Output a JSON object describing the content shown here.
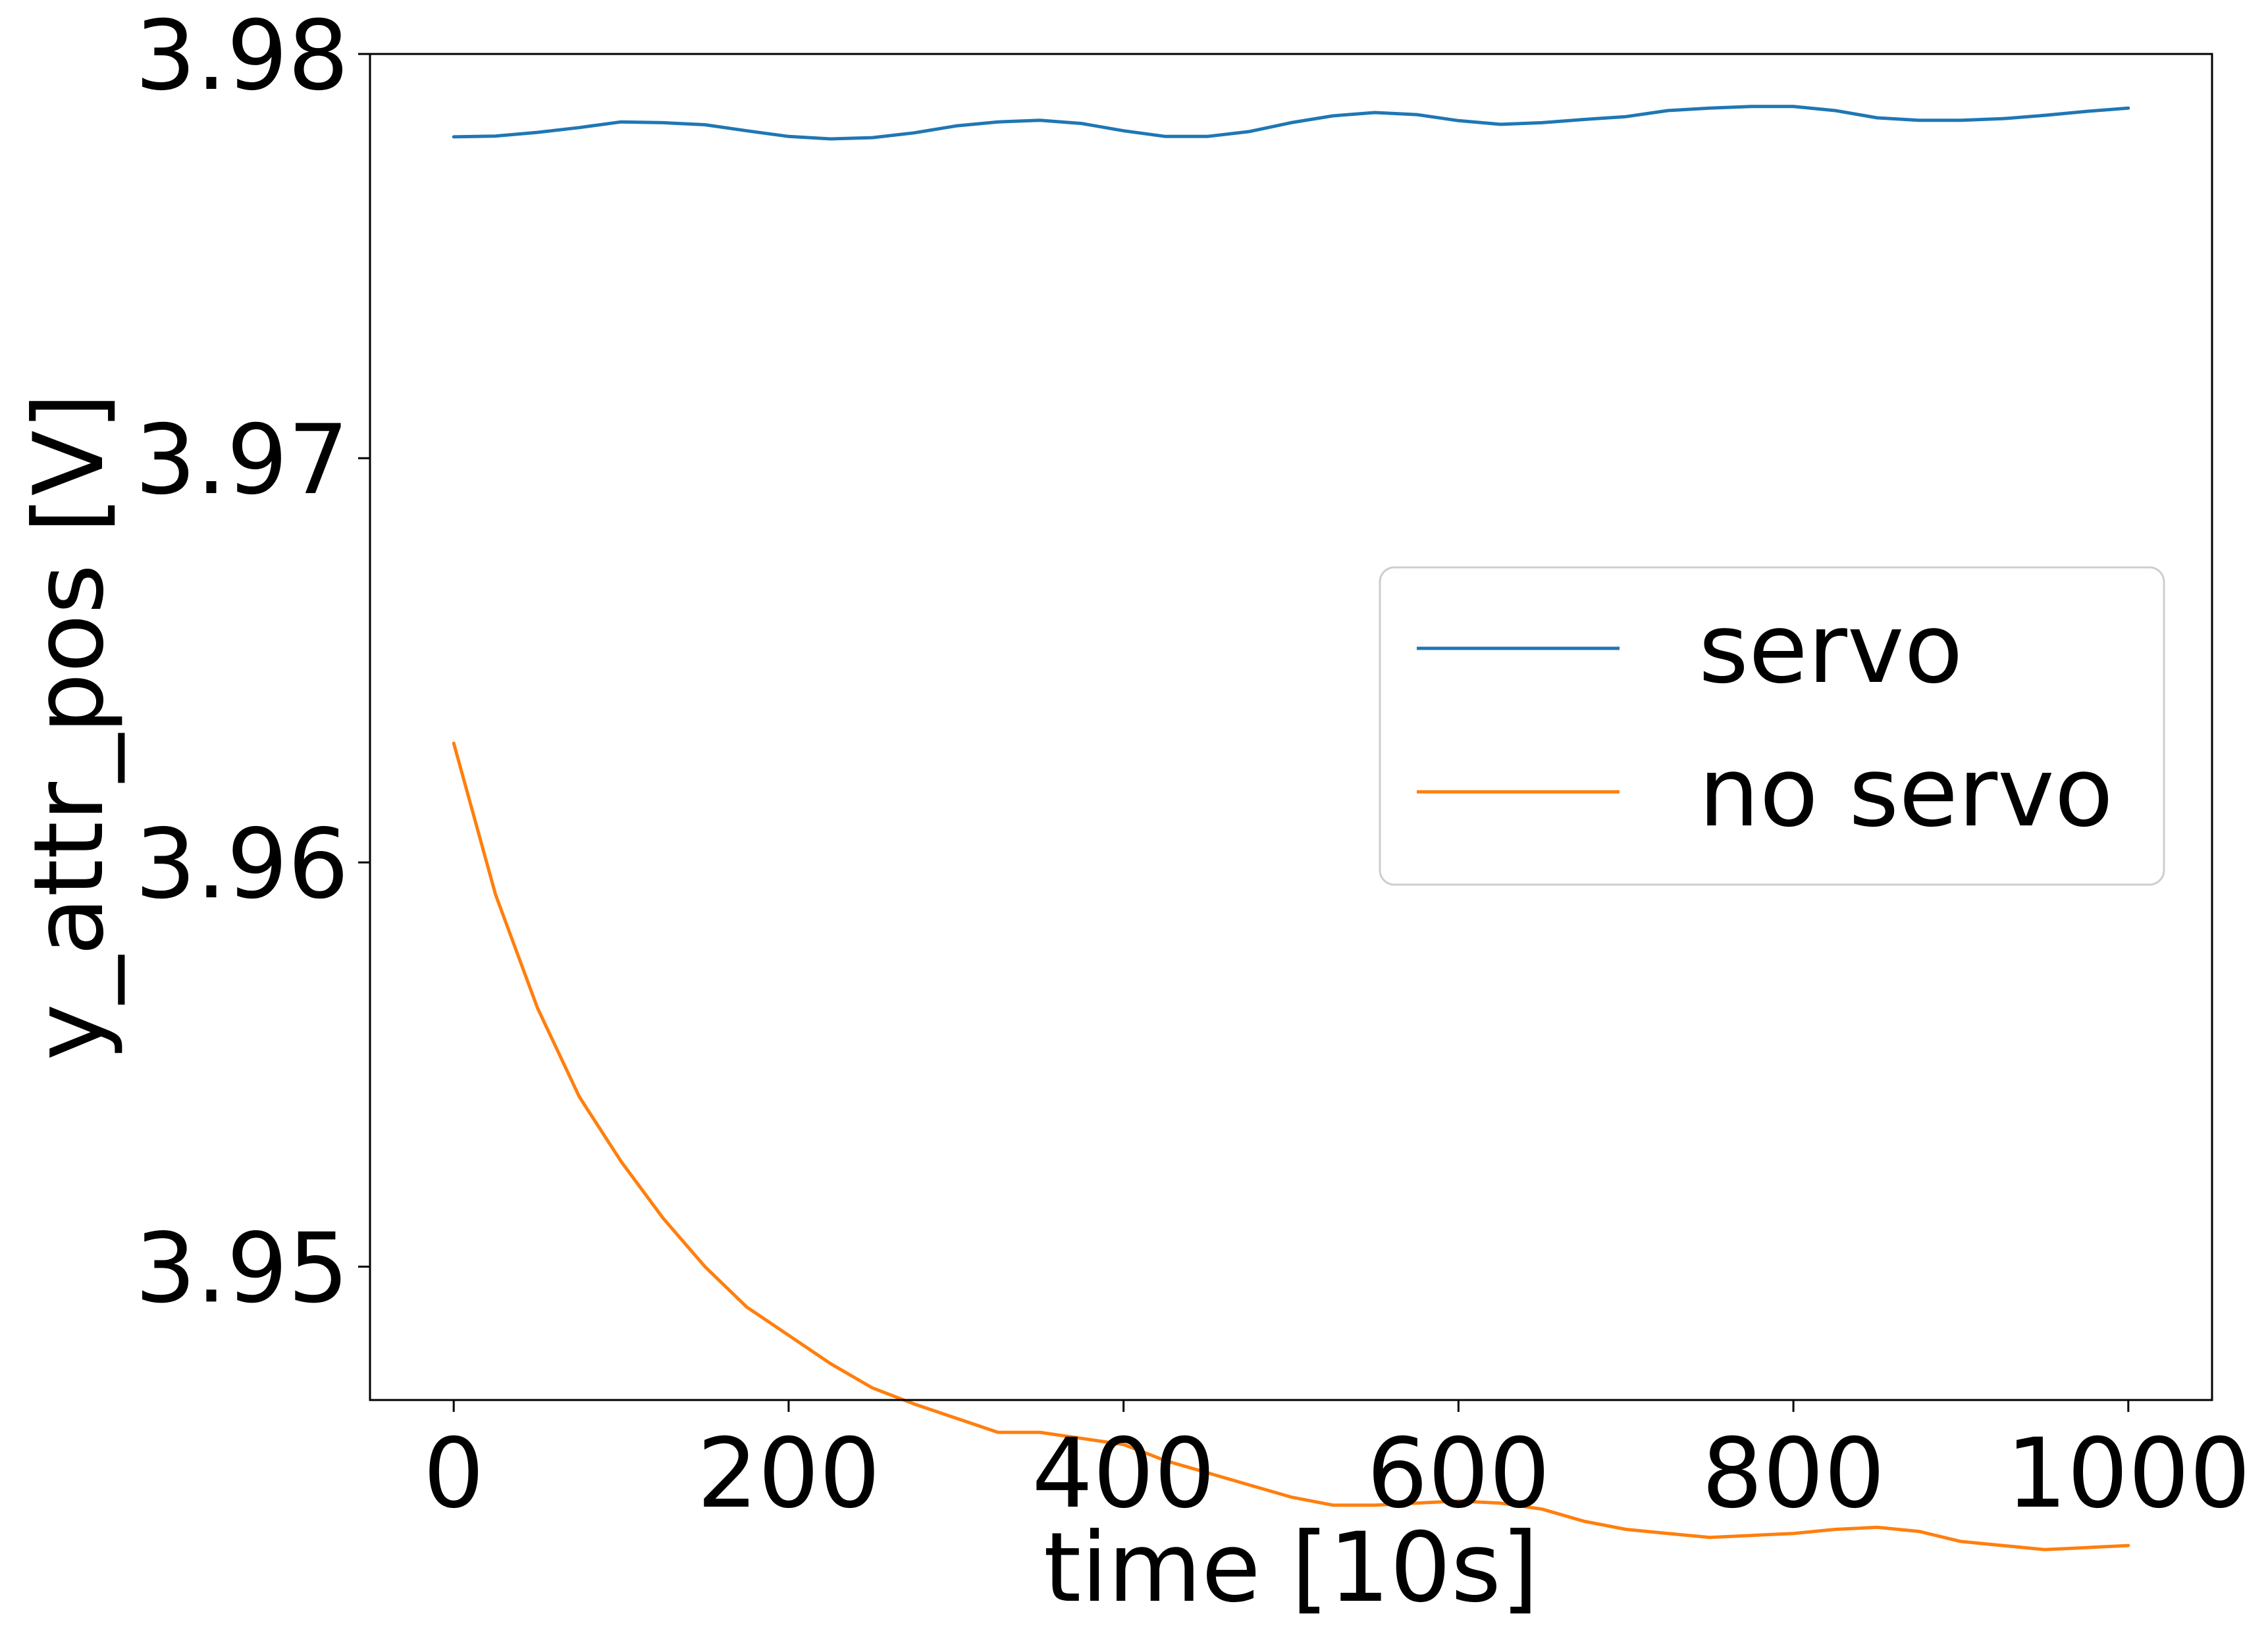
{
  "chart_data": {
    "type": "line",
    "title": "",
    "xlabel": "time [10s]",
    "ylabel": "y_attr_pos [V]",
    "xlim": [
      -50,
      1050
    ],
    "ylim": [
      3.9467,
      3.98
    ],
    "xticks": [
      {
        "value": 0,
        "label": "0"
      },
      {
        "value": 200,
        "label": "200"
      },
      {
        "value": 400,
        "label": "400"
      },
      {
        "value": 600,
        "label": "600"
      },
      {
        "value": 800,
        "label": "800"
      },
      {
        "value": 1000,
        "label": "1000"
      }
    ],
    "yticks": [
      {
        "value": 3.95,
        "label": "3.95"
      },
      {
        "value": 3.96,
        "label": "3.96"
      },
      {
        "value": 3.97,
        "label": "3.97"
      },
      {
        "value": 3.98,
        "label": "3.98"
      }
    ],
    "grid": false,
    "legend_position": "center-right",
    "x": [
      0,
      25,
      50,
      75,
      100,
      125,
      150,
      175,
      200,
      225,
      250,
      275,
      300,
      325,
      350,
      375,
      400,
      425,
      450,
      475,
      500,
      525,
      550,
      575,
      600,
      625,
      650,
      675,
      700,
      725,
      750,
      775,
      800,
      825,
      850,
      875,
      900,
      925,
      950,
      975,
      1000
    ],
    "series": [
      {
        "name": "servo",
        "color": "#1f77b4",
        "values": [
          3.97795,
          3.97797,
          3.97806,
          3.97818,
          3.97832,
          3.9783,
          3.97825,
          3.9781,
          3.97796,
          3.9779,
          3.97793,
          3.97805,
          3.97822,
          3.97832,
          3.97836,
          3.97828,
          3.9781,
          3.97796,
          3.97796,
          3.97808,
          3.9783,
          3.97847,
          3.97855,
          3.9785,
          3.97835,
          3.97826,
          3.9783,
          3.97838,
          3.97845,
          3.9786,
          3.97866,
          3.9787,
          3.9787,
          3.9786,
          3.97842,
          3.97836,
          3.97836,
          3.9784,
          3.97848,
          3.97858,
          3.97866
        ]
      },
      {
        "name": "no servo",
        "color": "#ff7f0e",
        "values": [
          3.96295,
          3.9592,
          3.9564,
          3.9542,
          3.9526,
          3.9512,
          3.95,
          3.949,
          3.9483,
          3.9476,
          3.947,
          3.9466,
          3.94625,
          3.9459,
          3.9459,
          3.94575,
          3.9456,
          3.9452,
          3.9449,
          3.9446,
          3.9443,
          3.9441,
          3.9441,
          3.94415,
          3.9442,
          3.94415,
          3.944,
          3.9437,
          3.9435,
          3.9434,
          3.9433,
          3.94335,
          3.9434,
          3.9435,
          3.94355,
          3.94345,
          3.9432,
          3.9431,
          3.943,
          3.94305,
          3.9431
        ]
      }
    ]
  }
}
